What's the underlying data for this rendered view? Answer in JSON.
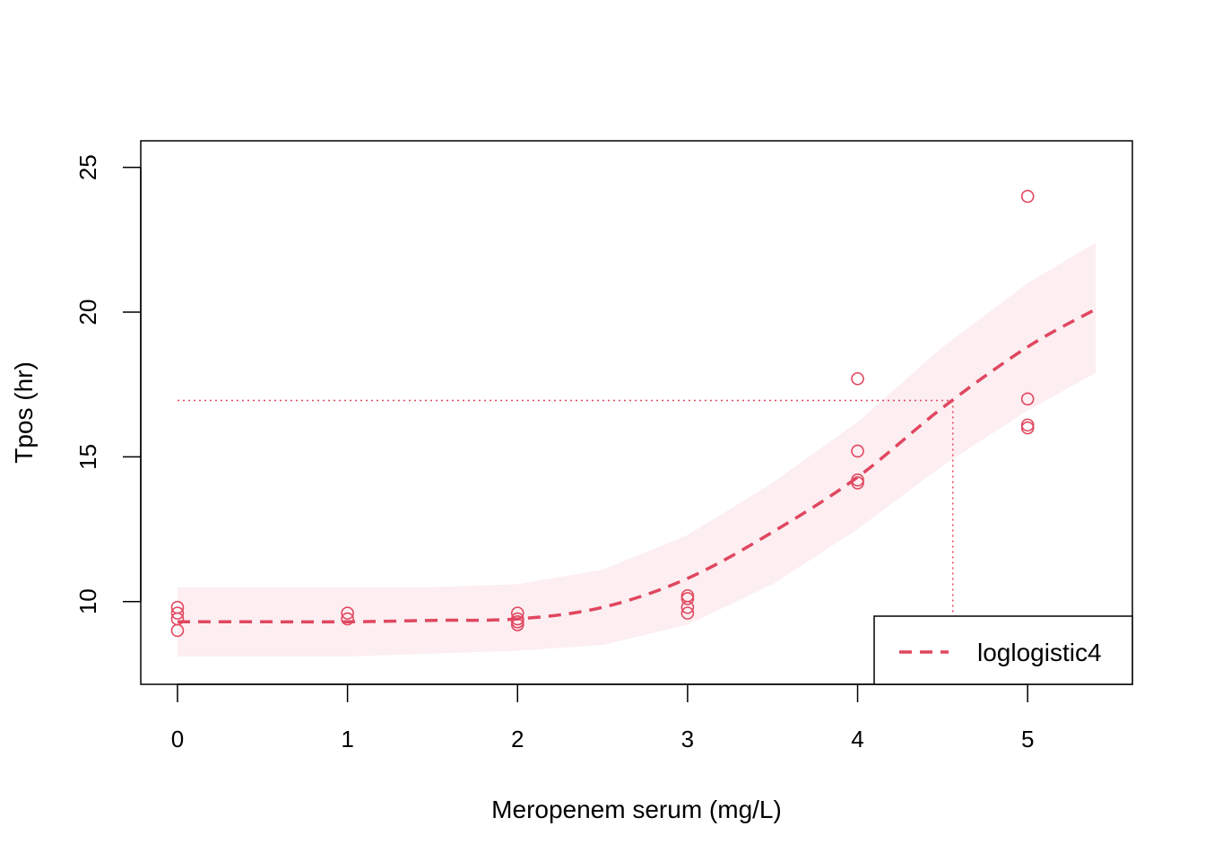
{
  "chart_data": {
    "type": "scatter",
    "title": "",
    "xlabel": "Meropenem serum (mg/L)",
    "ylabel": "Tpos (hr)",
    "xlim": [
      -0.216,
      5.616
    ],
    "ylim": [
      7.14,
      25.92
    ],
    "x_ticks": [
      "0",
      "1",
      "2",
      "3",
      "4",
      "5"
    ],
    "y_ticks": [
      "10",
      "15",
      "20",
      "25"
    ],
    "grid": false,
    "legend_position": "bottom-right",
    "colors": {
      "series": "#E0475F",
      "band": "#FCEEF1",
      "axis": "#000000"
    },
    "points": [
      {
        "x": 0,
        "y": 9.8
      },
      {
        "x": 0,
        "y": 9.6
      },
      {
        "x": 0,
        "y": 9.4
      },
      {
        "x": 0,
        "y": 9.0
      },
      {
        "x": 1,
        "y": 9.6
      },
      {
        "x": 1,
        "y": 9.4
      },
      {
        "x": 2,
        "y": 9.6
      },
      {
        "x": 2,
        "y": 9.4
      },
      {
        "x": 2,
        "y": 9.3
      },
      {
        "x": 2,
        "y": 9.2
      },
      {
        "x": 3,
        "y": 10.2
      },
      {
        "x": 3,
        "y": 10.1
      },
      {
        "x": 3,
        "y": 9.8
      },
      {
        "x": 3,
        "y": 9.6
      },
      {
        "x": 4,
        "y": 17.7
      },
      {
        "x": 4,
        "y": 15.2
      },
      {
        "x": 4,
        "y": 14.2
      },
      {
        "x": 4,
        "y": 14.1
      },
      {
        "x": 5,
        "y": 24.0
      },
      {
        "x": 5,
        "y": 17.0
      },
      {
        "x": 5,
        "y": 16.1
      },
      {
        "x": 5,
        "y": 16.0
      }
    ],
    "fit_curve": {
      "name": "loglogistic4",
      "line_style": "dashed",
      "x": [
        0,
        0.5,
        1.0,
        1.5,
        2.0,
        2.5,
        3.0,
        3.5,
        4.0,
        4.5,
        5.0,
        5.4
      ],
      "y": [
        9.3,
        9.3,
        9.3,
        9.35,
        9.4,
        9.8,
        10.8,
        12.4,
        14.3,
        16.7,
        18.8,
        20.1
      ]
    },
    "confidence_band": {
      "x": [
        0,
        0.5,
        1.0,
        1.5,
        2.0,
        2.5,
        3.0,
        3.5,
        4.0,
        4.5,
        5.0,
        5.4
      ],
      "upper": [
        10.5,
        10.5,
        10.5,
        10.5,
        10.6,
        11.1,
        12.3,
        14.1,
        16.2,
        18.8,
        21.0,
        22.4
      ],
      "lower": [
        8.1,
        8.1,
        8.1,
        8.2,
        8.3,
        8.5,
        9.2,
        10.6,
        12.5,
        14.7,
        16.6,
        17.9
      ]
    },
    "reference_lines": {
      "y_level": 16.95,
      "x_at_level": 4.56,
      "line_style": "dotted"
    },
    "legend": {
      "entries": [
        {
          "label": "loglogistic4",
          "line_style": "dashed"
        }
      ]
    }
  }
}
